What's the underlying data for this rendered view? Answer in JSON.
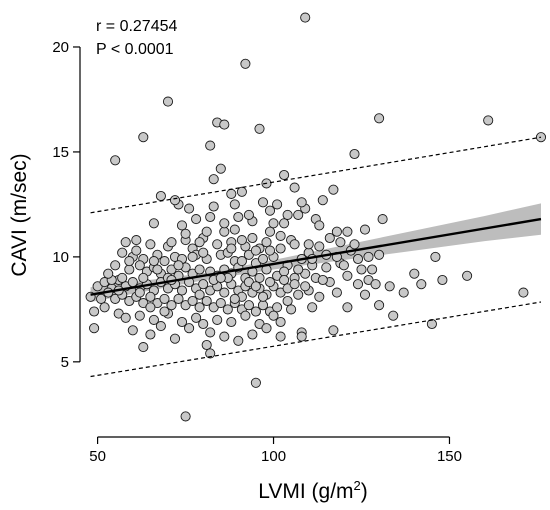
{
  "chart_data": {
    "type": "scatter",
    "xlabel_main": "LVMI (g/m",
    "xlabel_sup": "2",
    "xlabel_tail": ")",
    "ylabel": "CAVI (m/sec)",
    "xlim": [
      45,
      178
    ],
    "ylim": [
      1.8,
      22
    ],
    "x_ticks": [
      50,
      100,
      150
    ],
    "y_ticks": [
      5,
      10,
      15,
      20
    ],
    "annotations": {
      "r": "r = 0.27454",
      "p": "P < 0.0001"
    },
    "regression": {
      "x_start": 48,
      "x_end": 176,
      "y_start": 8.2,
      "y_end": 11.8
    },
    "confidence_band": {
      "upper": [
        [
          48,
          8.55
        ],
        [
          80,
          9.22
        ],
        [
          100,
          9.85
        ],
        [
          120,
          10.55
        ],
        [
          140,
          11.25
        ],
        [
          160,
          11.95
        ],
        [
          176,
          12.55
        ]
      ],
      "lower": [
        [
          48,
          7.85
        ],
        [
          80,
          8.88
        ],
        [
          100,
          9.4
        ],
        [
          120,
          9.85
        ],
        [
          140,
          10.3
        ],
        [
          160,
          10.75
        ],
        [
          176,
          11.05
        ]
      ]
    },
    "prediction_upper": {
      "x_start": 48,
      "x_end": 176,
      "y_start": 12.1,
      "y_end": 15.7
    },
    "prediction_lower": {
      "x_start": 48,
      "x_end": 176,
      "y_start": 4.3,
      "y_end": 7.85
    },
    "points": [
      [
        109,
        21.4
      ],
      [
        92,
        19.2
      ],
      [
        70,
        17.4
      ],
      [
        84,
        16.4
      ],
      [
        86,
        16.3
      ],
      [
        130,
        16.6
      ],
      [
        161,
        16.5
      ],
      [
        176,
        15.7
      ],
      [
        63,
        15.7
      ],
      [
        55,
        14.6
      ],
      [
        96,
        16.1
      ],
      [
        82,
        15.3
      ],
      [
        123,
        14.9
      ],
      [
        85,
        14.2
      ],
      [
        103,
        13.9
      ],
      [
        83,
        13.7
      ],
      [
        98,
        13.5
      ],
      [
        106,
        13.3
      ],
      [
        88,
        13.0
      ],
      [
        117,
        13.2
      ],
      [
        68,
        12.9
      ],
      [
        97,
        12.6
      ],
      [
        101,
        12.5
      ],
      [
        114,
        12.7
      ],
      [
        73,
        12.5
      ],
      [
        76,
        12.3
      ],
      [
        109,
        12.3
      ],
      [
        112,
        11.8
      ],
      [
        131,
        11.8
      ],
      [
        66,
        11.6
      ],
      [
        74,
        11.5
      ],
      [
        90,
        11.9
      ],
      [
        94,
        11.7
      ],
      [
        107,
        12.0
      ],
      [
        82,
        11.9
      ],
      [
        126,
        11.3
      ],
      [
        103,
        11.6
      ],
      [
        118,
        11.2
      ],
      [
        86,
        11.2
      ],
      [
        121,
        11.2
      ],
      [
        80,
        10.9
      ],
      [
        99,
        11.2
      ],
      [
        102,
        11.0
      ],
      [
        61,
        10.8
      ],
      [
        58,
        10.7
      ],
      [
        65,
        10.6
      ],
      [
        70,
        10.5
      ],
      [
        75,
        10.8
      ],
      [
        77,
        10.4
      ],
      [
        84,
        10.6
      ],
      [
        88,
        10.7
      ],
      [
        92,
        10.5
      ],
      [
        96,
        10.4
      ],
      [
        105,
        10.8
      ],
      [
        110,
        10.2
      ],
      [
        113,
        10.5
      ],
      [
        116,
        10.9
      ],
      [
        122,
        10.3
      ],
      [
        127,
        10.0
      ],
      [
        146,
        10.0
      ],
      [
        57,
        10.2
      ],
      [
        60,
        10.0
      ],
      [
        63,
        9.9
      ],
      [
        67,
        10.1
      ],
      [
        69,
        9.8
      ],
      [
        72,
        10.0
      ],
      [
        78,
        10.1
      ],
      [
        81,
        9.9
      ],
      [
        85,
        10.1
      ],
      [
        89,
        9.8
      ],
      [
        93,
        10.1
      ],
      [
        95,
        9.7
      ],
      [
        97,
        9.9
      ],
      [
        100,
        10.0
      ],
      [
        104,
        9.6
      ],
      [
        108,
        9.9
      ],
      [
        111,
        9.6
      ],
      [
        115,
        9.5
      ],
      [
        119,
        9.7
      ],
      [
        125,
        9.4
      ],
      [
        128,
        9.4
      ],
      [
        140,
        9.2
      ],
      [
        55,
        9.6
      ],
      [
        59,
        9.4
      ],
      [
        62,
        9.6
      ],
      [
        64,
        9.3
      ],
      [
        66,
        9.5
      ],
      [
        68,
        9.2
      ],
      [
        71,
        9.4
      ],
      [
        73,
        9.1
      ],
      [
        75,
        9.5
      ],
      [
        77,
        9.2
      ],
      [
        79,
        9.4
      ],
      [
        82,
        9.3
      ],
      [
        84,
        9.1
      ],
      [
        86,
        9.4
      ],
      [
        88,
        9.2
      ],
      [
        90,
        9.5
      ],
      [
        92,
        9.0
      ],
      [
        94,
        9.3
      ],
      [
        96,
        9.0
      ],
      [
        98,
        9.4
      ],
      [
        101,
        9.1
      ],
      [
        103,
        9.3
      ],
      [
        106,
        9.0
      ],
      [
        109,
        9.2
      ],
      [
        112,
        9.0
      ],
      [
        116,
        8.8
      ],
      [
        121,
        9.1
      ],
      [
        124,
        8.7
      ],
      [
        127,
        8.9
      ],
      [
        129,
        8.7
      ],
      [
        148,
        8.9
      ],
      [
        155,
        9.1
      ],
      [
        142,
        8.7
      ],
      [
        50,
        8.6
      ],
      [
        52,
        8.8
      ],
      [
        54,
        8.5
      ],
      [
        56,
        8.9
      ],
      [
        58,
        8.6
      ],
      [
        60,
        8.8
      ],
      [
        62,
        8.5
      ],
      [
        64,
        8.7
      ],
      [
        66,
        8.4
      ],
      [
        68,
        8.8
      ],
      [
        70,
        8.5
      ],
      [
        72,
        8.7
      ],
      [
        74,
        8.4
      ],
      [
        76,
        8.8
      ],
      [
        78,
        8.5
      ],
      [
        80,
        8.7
      ],
      [
        82,
        8.4
      ],
      [
        84,
        8.6
      ],
      [
        86,
        8.3
      ],
      [
        88,
        8.7
      ],
      [
        90,
        8.4
      ],
      [
        92,
        8.6
      ],
      [
        94,
        8.3
      ],
      [
        96,
        8.5
      ],
      [
        98,
        8.2
      ],
      [
        100,
        8.6
      ],
      [
        102,
        8.3
      ],
      [
        104,
        8.5
      ],
      [
        107,
        8.2
      ],
      [
        110,
        8.4
      ],
      [
        113,
        8.1
      ],
      [
        118,
        8.3
      ],
      [
        126,
        8.2
      ],
      [
        48,
        8.1
      ],
      [
        51,
        8.0
      ],
      [
        53,
        8.3
      ],
      [
        55,
        8.0
      ],
      [
        57,
        8.2
      ],
      [
        59,
        7.9
      ],
      [
        61,
        8.1
      ],
      [
        63,
        7.8
      ],
      [
        65,
        8.1
      ],
      [
        67,
        7.8
      ],
      [
        69,
        8.0
      ],
      [
        71,
        7.7
      ],
      [
        73,
        8.0
      ],
      [
        75,
        7.7
      ],
      [
        77,
        7.9
      ],
      [
        79,
        7.6
      ],
      [
        81,
        7.9
      ],
      [
        83,
        7.6
      ],
      [
        85,
        7.8
      ],
      [
        87,
        7.5
      ],
      [
        89,
        7.8
      ],
      [
        91,
        7.5
      ],
      [
        93,
        7.7
      ],
      [
        95,
        7.4
      ],
      [
        97,
        7.7
      ],
      [
        99,
        7.4
      ],
      [
        101,
        7.6
      ],
      [
        105,
        7.5
      ],
      [
        111,
        7.6
      ],
      [
        121,
        7.6
      ],
      [
        130,
        7.7
      ],
      [
        49,
        7.4
      ],
      [
        56,
        7.3
      ],
      [
        58,
        7.1
      ],
      [
        62,
        7.2
      ],
      [
        66,
        7.0
      ],
      [
        70,
        7.3
      ],
      [
        74,
        6.9
      ],
      [
        78,
        7.1
      ],
      [
        80,
        6.8
      ],
      [
        84,
        7.0
      ],
      [
        88,
        6.9
      ],
      [
        92,
        7.2
      ],
      [
        96,
        6.8
      ],
      [
        102,
        6.9
      ],
      [
        108,
        6.4
      ],
      [
        108,
        6.2
      ],
      [
        117,
        6.5
      ],
      [
        145,
        6.8
      ],
      [
        134,
        7.2
      ],
      [
        60,
        6.5
      ],
      [
        65,
        6.3
      ],
      [
        68,
        6.7
      ],
      [
        72,
        6.1
      ],
      [
        76,
        6.6
      ],
      [
        82,
        6.4
      ],
      [
        86,
        6.2
      ],
      [
        90,
        6.0
      ],
      [
        94,
        6.3
      ],
      [
        98,
        6.6
      ],
      [
        102,
        6.2
      ],
      [
        63,
        5.7
      ],
      [
        81,
        5.8
      ],
      [
        82,
        5.4
      ],
      [
        95,
        4.0
      ],
      [
        75,
        2.4
      ],
      [
        49,
        6.6
      ],
      [
        52,
        7.6
      ],
      [
        54,
        8.9
      ],
      [
        57,
        9.0
      ],
      [
        61,
        10.3
      ],
      [
        67,
        9.4
      ],
      [
        71,
        10.7
      ],
      [
        74,
        9.9
      ],
      [
        79,
        10.7
      ],
      [
        87,
        10.2
      ],
      [
        91,
        9.8
      ],
      [
        95,
        10.3
      ],
      [
        99,
        8.8
      ],
      [
        103,
        8.9
      ],
      [
        107,
        9.4
      ],
      [
        111,
        9.9
      ],
      [
        114,
        8.9
      ],
      [
        120,
        9.6
      ],
      [
        133,
        8.6
      ],
      [
        171,
        8.3
      ],
      [
        137,
        8.3
      ],
      [
        65,
        7.6
      ],
      [
        69,
        7.4
      ],
      [
        79,
        8.2
      ],
      [
        83,
        8.9
      ],
      [
        87,
        9.0
      ],
      [
        91,
        8.1
      ],
      [
        93,
        8.8
      ],
      [
        97,
        8.1
      ],
      [
        100,
        7.2
      ],
      [
        104,
        7.9
      ],
      [
        106,
        8.7
      ],
      [
        109,
        8.6
      ],
      [
        63,
        9.0
      ],
      [
        66,
        9.8
      ],
      [
        70,
        9.0
      ],
      [
        73,
        9.6
      ],
      [
        77,
        10.0
      ],
      [
        80,
        10.2
      ],
      [
        85,
        9.0
      ],
      [
        88,
        10.4
      ],
      [
        91,
        10.8
      ],
      [
        94,
        10.9
      ],
      [
        98,
        10.7
      ],
      [
        102,
        10.4
      ],
      [
        106,
        10.6
      ],
      [
        110,
        10.6
      ],
      [
        115,
        10.1
      ],
      [
        118,
        10.0
      ],
      [
        124,
        9.9
      ],
      [
        130,
        10.1
      ],
      [
        53,
        9.2
      ],
      [
        56,
        8.4
      ],
      [
        59,
        9.8
      ],
      [
        62,
        8.3
      ],
      [
        75,
        11.1
      ],
      [
        81,
        11.2
      ],
      [
        86,
        11.6
      ],
      [
        89,
        11.3
      ],
      [
        93,
        12.0
      ],
      [
        99,
        12.2
      ],
      [
        104,
        12.0
      ],
      [
        108,
        12.6
      ],
      [
        113,
        11.5
      ],
      [
        72,
        12.7
      ],
      [
        78,
        11.8
      ],
      [
        83,
        12.4
      ],
      [
        89,
        12.5
      ],
      [
        91,
        13.1
      ],
      [
        100,
        11.6
      ],
      [
        71,
        8.9
      ],
      [
        89,
        8.0
      ],
      [
        95,
        8.6
      ],
      [
        99,
        10.3
      ],
      [
        119,
        10.7
      ],
      [
        123,
        10.6
      ]
    ]
  }
}
